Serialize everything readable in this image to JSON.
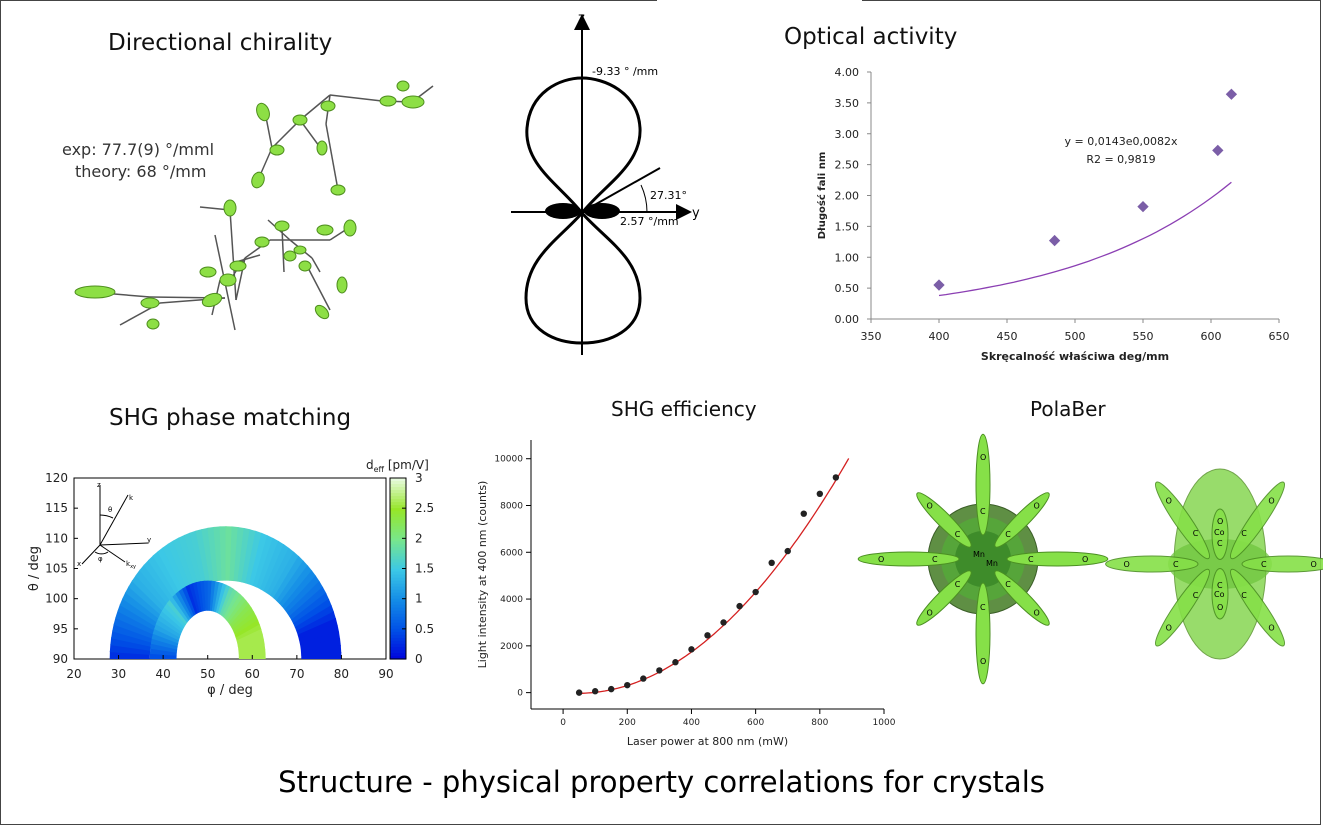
{
  "main_title": "Structure - physical property correlations for crystals",
  "panels": {
    "directional_chirality": {
      "title": "Directional chirality",
      "exp_label": "exp:  77.7(9) °/mml",
      "theory_label": "theory: 68 °/mm"
    },
    "polar_plot": {
      "z_label": "z",
      "y_label": "y",
      "top_value": "-9.33 ° /mm",
      "angle_value": "27.31°",
      "side_value": "2.57 °/mm"
    },
    "optical_activity": {
      "title": "Optical activity"
    },
    "shg_phase_matching": {
      "title": "SHG phase matching",
      "colorbar_label": "d",
      "colorbar_sub": "eff",
      "colorbar_unit": " [pm/V]",
      "inset_labels": [
        "z",
        "k",
        "θ",
        "y",
        "x",
        "φ",
        "k",
        "xy"
      ]
    },
    "shg_efficiency": {
      "title": "SHG efficiency"
    },
    "polaber": {
      "title": "PolaBer",
      "left_atom_labels": [
        "O",
        "C",
        "O",
        "C",
        "O",
        "C",
        "O",
        "C",
        "O",
        "C",
        "O",
        "C",
        "O",
        "C",
        "O",
        "C",
        "Mn",
        "Mn"
      ],
      "right_atom_labels": [
        "O",
        "C",
        "O",
        "C",
        "O",
        "C",
        "O",
        "C",
        "O",
        "C",
        "O",
        "C",
        "O",
        "C",
        "O",
        "C",
        "Co",
        "Co"
      ]
    }
  },
  "chart_data": [
    {
      "type": "scatter",
      "name": "optical_activity",
      "xlabel": "Skręcalność właściwa deg/mm",
      "ylabel": "Długość fali nm",
      "xlim": [
        350,
        650
      ],
      "ylim": [
        0,
        4
      ],
      "x_ticks": [
        "350",
        "400",
        "450",
        "500",
        "550",
        "600",
        "650"
      ],
      "y_ticks": [
        "0.00",
        "0.50",
        "1.00",
        "1.50",
        "2.00",
        "2.50",
        "3.00",
        "3.50",
        "4.00"
      ],
      "points": [
        [
          400,
          0.55
        ],
        [
          485,
          1.27
        ],
        [
          550,
          1.82
        ],
        [
          605,
          2.73
        ],
        [
          615,
          3.64
        ]
      ],
      "trendline": {
        "type": "exponential",
        "a": 0.0143,
        "b": 0.0082,
        "x_range": [
          400,
          615
        ]
      },
      "annotation_equation": "y = 0,0143e0,0082x",
      "annotation_r2": "R2 = 0,9819",
      "colors": {
        "points": "#7b5ea7",
        "line": "#8b3fb3"
      },
      "grid": false
    },
    {
      "type": "heatmap",
      "name": "shg_phase_matching",
      "xlabel": "φ / deg",
      "ylabel": "θ / deg",
      "xlim": [
        20,
        90
      ],
      "ylim": [
        90,
        120
      ],
      "x_ticks": [
        "20",
        "30",
        "40",
        "50",
        "60",
        "70",
        "80",
        "90"
      ],
      "y_ticks": [
        "90",
        "95",
        "100",
        "105",
        "110",
        "115",
        "120"
      ],
      "colorbar_ticks": [
        "0",
        "0.5",
        "1",
        "1.5",
        "2",
        "2.5",
        "3"
      ],
      "colorbar_range": [
        0,
        3
      ],
      "outer_band": {
        "center_phi": 54,
        "phi_radius_outer": 26,
        "phi_radius_inner": 17,
        "theta_top_outer": 112,
        "theta_top_inner": 103,
        "values_left_to_right": [
          0.3,
          0.8,
          1.3,
          1.5,
          1.6,
          1.9,
          1.5,
          1.3,
          0.8,
          0.2
        ]
      },
      "inner_band": {
        "center_phi": 50,
        "phi_radius_outer": 13,
        "phi_radius_inner": 7,
        "theta_top_outer": 103,
        "theta_top_inner": 98,
        "values_left_to_right": [
          0.5,
          1.2,
          1.6,
          0.3,
          0.7,
          1.8,
          2.3,
          2.6
        ]
      }
    },
    {
      "type": "scatter",
      "name": "shg_efficiency",
      "xlabel": "Laser power at 800 nm (mW)",
      "ylabel": "Light intensity at 400 nm (counts)",
      "xlim": [
        -100,
        1000
      ],
      "ylim": [
        -700,
        10800
      ],
      "x_ticks": [
        "0",
        "200",
        "400",
        "600",
        "800",
        "1000"
      ],
      "y_ticks": [
        "0",
        "2000",
        "4000",
        "6000",
        "8000",
        "10000"
      ],
      "points": [
        [
          50,
          0
        ],
        [
          100,
          60
        ],
        [
          150,
          150
        ],
        [
          200,
          320
        ],
        [
          250,
          600
        ],
        [
          300,
          950
        ],
        [
          350,
          1300
        ],
        [
          400,
          1850
        ],
        [
          450,
          2450
        ],
        [
          500,
          3000
        ],
        [
          550,
          3700
        ],
        [
          600,
          4300
        ],
        [
          650,
          5550
        ],
        [
          700,
          6050
        ],
        [
          750,
          7650
        ],
        [
          800,
          8500
        ],
        [
          850,
          9200
        ]
      ],
      "fit_curve": {
        "type": "quadratic",
        "c2": 0.0141,
        "c1": -1.3,
        "x_range": [
          50,
          890
        ]
      },
      "colors": {
        "points": "#222222",
        "line": "#d42020"
      },
      "grid": false
    }
  ]
}
